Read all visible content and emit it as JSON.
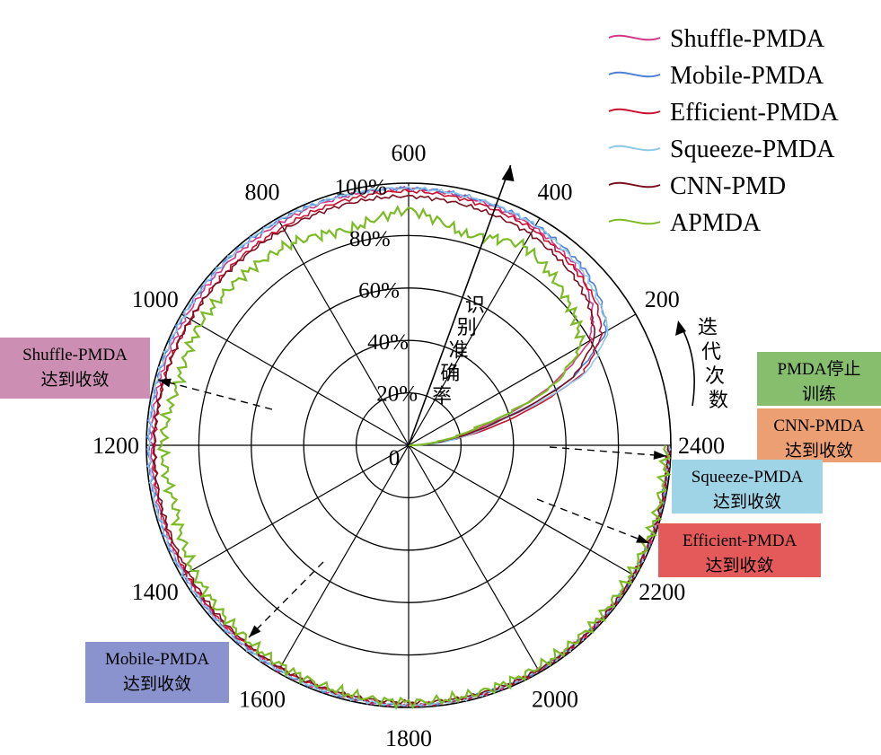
{
  "chart_data": {
    "type": "polar-line",
    "angular_axis": {
      "title": "迭代次数",
      "ticks": [
        200,
        400,
        600,
        800,
        1000,
        1200,
        1400,
        1600,
        1800,
        2000,
        2200,
        2400
      ],
      "range": [
        0,
        2400
      ]
    },
    "radial_axis": {
      "title": "识别准确率",
      "ticks": [
        "20%",
        "40%",
        "60%",
        "80%",
        "100%"
      ],
      "origin_label": "0",
      "range": [
        0,
        100
      ]
    },
    "series": [
      {
        "name": "Shuffle-PMDA",
        "color": "#d63384",
        "points": [
          [
            0,
            0
          ],
          [
            20,
            6
          ],
          [
            50,
            14
          ],
          [
            100,
            31
          ],
          [
            150,
            58
          ],
          [
            200,
            80
          ],
          [
            250,
            88
          ],
          [
            300,
            93
          ],
          [
            400,
            96
          ],
          [
            600,
            98
          ],
          [
            800,
            98
          ],
          [
            1000,
            98
          ],
          [
            1200,
            98
          ],
          [
            1400,
            98
          ],
          [
            1600,
            99
          ],
          [
            1800,
            99
          ],
          [
            2000,
            99
          ],
          [
            2200,
            99
          ],
          [
            2400,
            99
          ]
        ]
      },
      {
        "name": "Mobile-PMDA",
        "color": "#4a7fd6",
        "points": [
          [
            0,
            0
          ],
          [
            20,
            7
          ],
          [
            50,
            18
          ],
          [
            100,
            34
          ],
          [
            150,
            68
          ],
          [
            200,
            87
          ],
          [
            250,
            92
          ],
          [
            300,
            95
          ],
          [
            400,
            97
          ],
          [
            600,
            98
          ],
          [
            800,
            99
          ],
          [
            1000,
            99
          ],
          [
            1200,
            99
          ],
          [
            1400,
            99
          ],
          [
            1600,
            99
          ],
          [
            1800,
            99
          ],
          [
            2000,
            99
          ],
          [
            2200,
            99
          ],
          [
            2400,
            99
          ]
        ]
      },
      {
        "name": "Efficient-PMDA",
        "color": "#c8102e",
        "points": [
          [
            0,
            0
          ],
          [
            20,
            6
          ],
          [
            50,
            16
          ],
          [
            100,
            42
          ],
          [
            150,
            72
          ],
          [
            200,
            85
          ],
          [
            250,
            90
          ],
          [
            300,
            92
          ],
          [
            400,
            95
          ],
          [
            600,
            97
          ],
          [
            800,
            96
          ],
          [
            1000,
            96
          ],
          [
            1200,
            97
          ],
          [
            1400,
            98
          ],
          [
            1600,
            98
          ],
          [
            1800,
            99
          ],
          [
            2000,
            99
          ],
          [
            2200,
            99
          ],
          [
            2400,
            99
          ]
        ]
      },
      {
        "name": "Squeeze-PMDA",
        "color": "#8ec8e8",
        "points": [
          [
            0,
            0
          ],
          [
            20,
            6
          ],
          [
            50,
            17
          ],
          [
            100,
            36
          ],
          [
            150,
            74
          ],
          [
            200,
            88
          ],
          [
            250,
            91
          ],
          [
            300,
            94
          ],
          [
            400,
            97
          ],
          [
            600,
            98
          ],
          [
            800,
            99
          ],
          [
            1000,
            99
          ],
          [
            1200,
            99
          ],
          [
            1400,
            99
          ],
          [
            1600,
            99
          ],
          [
            1800,
            99
          ],
          [
            2000,
            99
          ],
          [
            2200,
            99
          ],
          [
            2400,
            99
          ]
        ]
      },
      {
        "name": "CNN-PMD",
        "color": "#7a0f1e",
        "points": [
          [
            0,
            0
          ],
          [
            20,
            5
          ],
          [
            50,
            14
          ],
          [
            100,
            35
          ],
          [
            150,
            68
          ],
          [
            200,
            82
          ],
          [
            250,
            87
          ],
          [
            300,
            90
          ],
          [
            400,
            93
          ],
          [
            600,
            95
          ],
          [
            800,
            95
          ],
          [
            1000,
            96
          ],
          [
            1200,
            97
          ],
          [
            1400,
            97
          ],
          [
            1600,
            98
          ],
          [
            1800,
            98
          ],
          [
            2000,
            99
          ],
          [
            2200,
            99
          ],
          [
            2400,
            99
          ]
        ]
      },
      {
        "name": "APMDA",
        "color": "#7cbb26",
        "points": [
          [
            0,
            0
          ],
          [
            20,
            5
          ],
          [
            50,
            12
          ],
          [
            100,
            28
          ],
          [
            150,
            60
          ],
          [
            200,
            76
          ],
          [
            250,
            80
          ],
          [
            300,
            83
          ],
          [
            400,
            88
          ],
          [
            500,
            83
          ],
          [
            600,
            90
          ],
          [
            700,
            85
          ],
          [
            800,
            89
          ],
          [
            1000,
            92
          ],
          [
            1100,
            91
          ],
          [
            1200,
            94
          ],
          [
            1300,
            92
          ],
          [
            1400,
            95
          ],
          [
            1500,
            96
          ],
          [
            1600,
            97
          ],
          [
            1800,
            98
          ],
          [
            2000,
            98
          ],
          [
            2200,
            98
          ],
          [
            2400,
            98
          ]
        ]
      }
    ],
    "annotations": [
      {
        "text": [
          "Shuffle-PMDA",
          "达到收敛"
        ],
        "color": "#cc8fb3",
        "iteration": 1100
      },
      {
        "text": [
          "Mobile-PMDA",
          "达到收敛"
        ],
        "color": "#8b93cf",
        "iteration": 1550
      },
      {
        "text": [
          "PMDA停止",
          "训练"
        ],
        "color": "#86be6e",
        "iteration": 2400
      },
      {
        "text": [
          "CNN-PMDA",
          "达到收敛"
        ],
        "color": "#ec9f72",
        "iteration": 2400
      },
      {
        "text": [
          "Squeeze-PMDA",
          "达到收敛"
        ],
        "color": "#9fd3e6",
        "iteration": 2390
      },
      {
        "text": [
          "Efficient-PMDA",
          "达到收敛"
        ],
        "color": "#e45a5a",
        "iteration": 2260
      }
    ],
    "legend_position": "top-right"
  }
}
